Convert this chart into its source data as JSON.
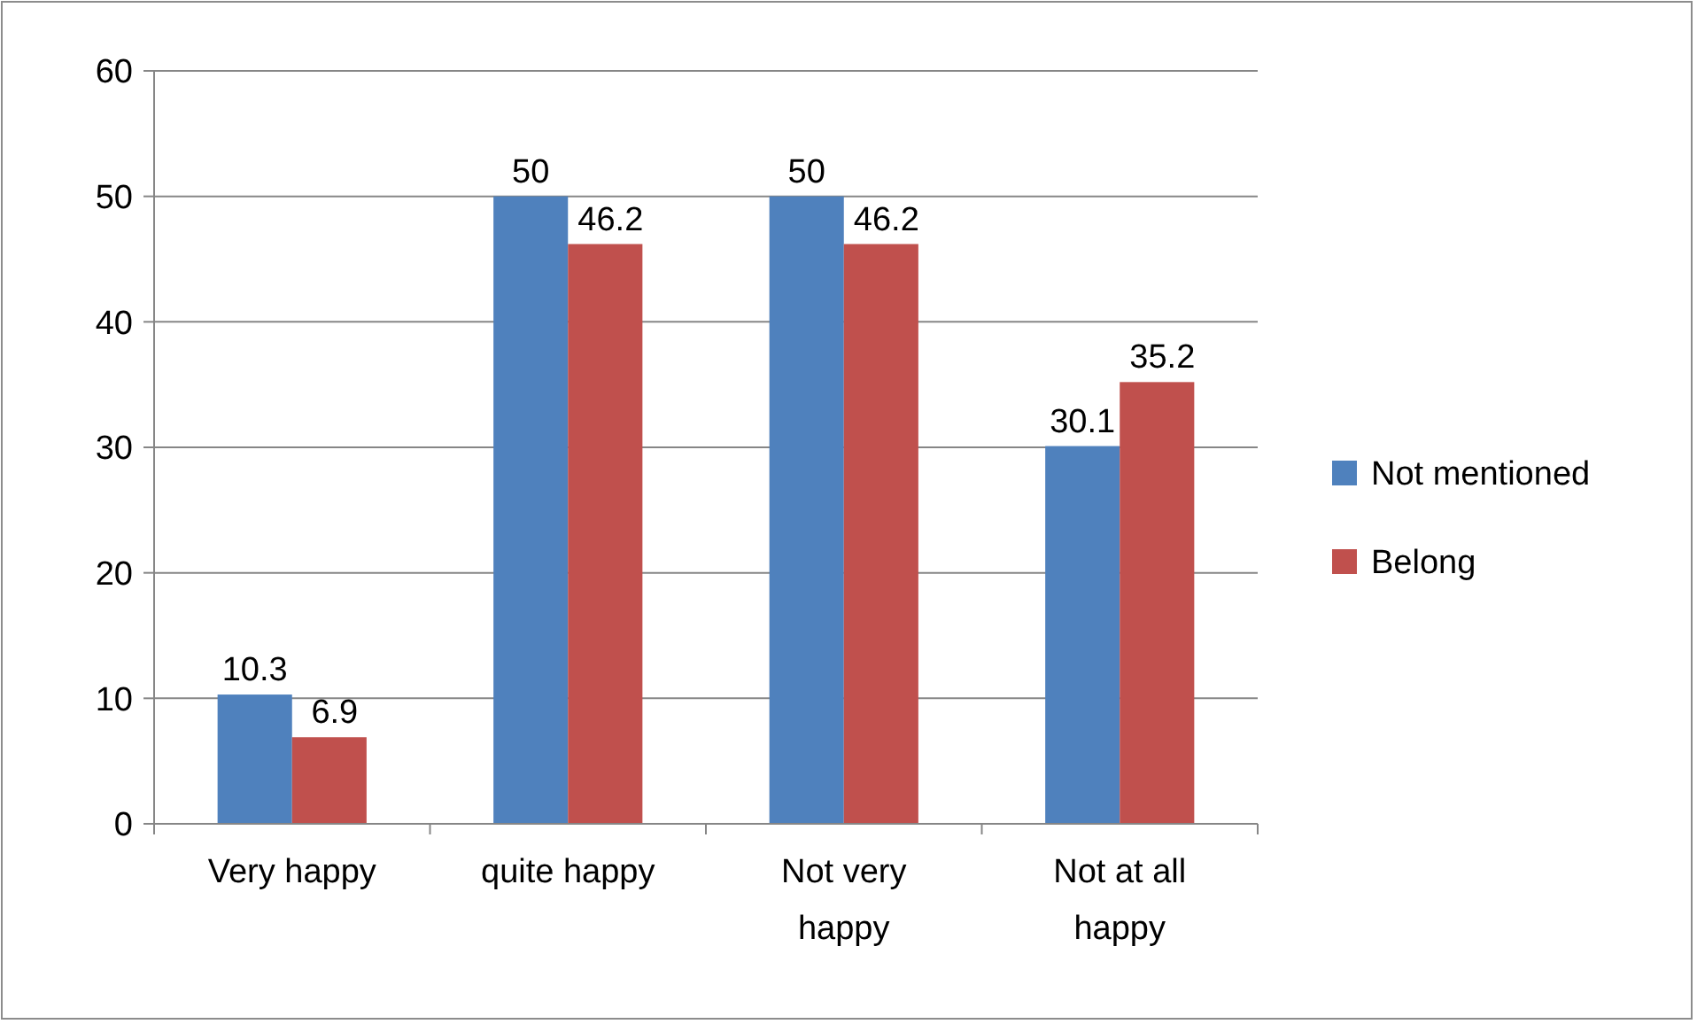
{
  "chart_data": {
    "type": "bar",
    "categories": [
      "Very happy",
      "quite happy",
      "Not very happy",
      "Not at all happy"
    ],
    "series": [
      {
        "name": "Not mentioned",
        "color": "#4f81bd",
        "values": [
          10.3,
          50,
          50,
          30.1
        ]
      },
      {
        "name": "Belong",
        "color": "#c0504d",
        "values": [
          6.9,
          46.2,
          46.2,
          35.2
        ]
      }
    ],
    "ylim": [
      0,
      60
    ],
    "yticks": [
      0,
      10,
      20,
      30,
      40,
      50,
      60
    ],
    "grid": "y",
    "legend": "right",
    "data_labels": true
  }
}
